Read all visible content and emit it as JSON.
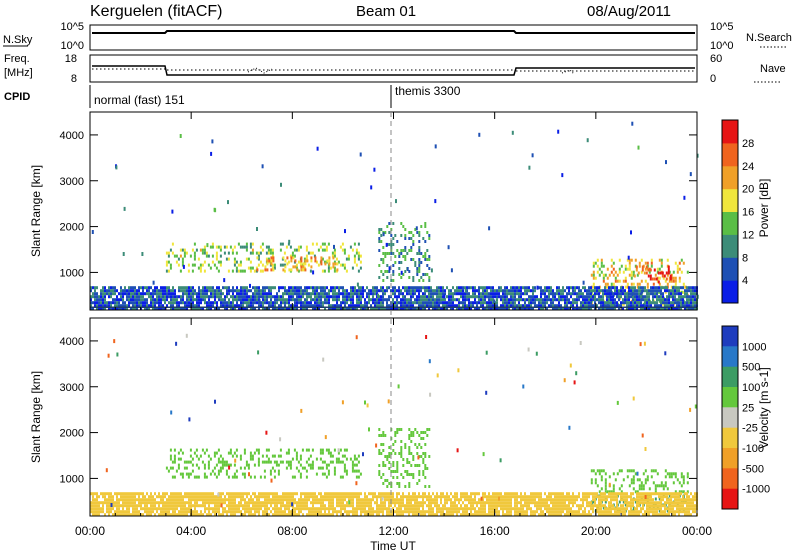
{
  "header": {
    "station": "Kerguelen (fitACF)",
    "beam": "Beam 01",
    "date": "08/Aug/2011"
  },
  "sky_panel": {
    "left_label": "N.Sky",
    "right_label": "N.Search",
    "left_ticks": [
      "10^5",
      "10^0"
    ],
    "right_ticks": [
      "10^5",
      "10^0"
    ]
  },
  "freq_panel": {
    "left_label_1": "Freq.",
    "left_label_2": "[MHz]",
    "right_label": "Nave",
    "left_ticks": [
      "18",
      "8"
    ],
    "right_ticks": [
      "60",
      "0"
    ]
  },
  "cpid": {
    "label": "CPID",
    "modes": [
      {
        "name": "normal (fast) 151",
        "start_hour": 0
      },
      {
        "name": "themis 3300",
        "start_hour": 12
      }
    ]
  },
  "chart_data": [
    {
      "type": "heatmap",
      "title": "",
      "xlabel": "",
      "ylabel": "Slant Range [km]",
      "xlim": [
        0,
        24
      ],
      "ylim": [
        180,
        4500
      ],
      "x_tick_labels": [
        "00:00",
        "04:00",
        "08:00",
        "12:00",
        "16:00",
        "20:00",
        "00:00"
      ],
      "y_tick_labels": [
        "1000",
        "2000",
        "3000",
        "4000"
      ],
      "colorbar": {
        "label": "Power [dB]",
        "tick_labels": [
          "4",
          "8",
          "12",
          "16",
          "20",
          "24",
          "28"
        ],
        "range": [
          0,
          30
        ],
        "colors": [
          "#0a1ee6",
          "#1e50b4",
          "#3c8c78",
          "#5abe46",
          "#f0e63c",
          "#f0a028",
          "#f0641e",
          "#e61414"
        ]
      },
      "regions": [
        {
          "t0": 3.0,
          "t1": 10.7,
          "r0": 1000,
          "r1": 1650,
          "value": 14
        },
        {
          "t0": 6.5,
          "t1": 9.8,
          "r0": 1050,
          "r1": 1350,
          "value": 21
        },
        {
          "t0": 11.4,
          "t1": 13.4,
          "r0": 800,
          "r1": 2100,
          "value": 10
        },
        {
          "t0": 19.8,
          "t1": 23.6,
          "r0": 700,
          "r1": 1300,
          "value": 18
        },
        {
          "t0": 21.5,
          "t1": 23.0,
          "r0": 780,
          "r1": 1150,
          "value": 27
        },
        {
          "t0": 19.8,
          "t1": 23.6,
          "r0": 280,
          "r1": 600,
          "value": 15
        },
        {
          "t0": 0.0,
          "t1": 24.0,
          "r0": 200,
          "r1": 700,
          "value": 6
        }
      ]
    },
    {
      "type": "heatmap",
      "title": "",
      "xlabel": "Time UT",
      "ylabel": "Slant Range [km]",
      "xlim": [
        0,
        24
      ],
      "ylim": [
        180,
        4500
      ],
      "x_tick_labels": [
        "00:00",
        "04:00",
        "08:00",
        "12:00",
        "16:00",
        "20:00",
        "00:00"
      ],
      "y_tick_labels": [
        "1000",
        "2000",
        "3000",
        "4000"
      ],
      "colorbar": {
        "label": "Velocity [m s-1]",
        "tick_labels": [
          "1000",
          "500",
          "100",
          "25",
          "-25",
          "-100",
          "-500",
          "-1000"
        ],
        "colors": [
          "#1e3cbe",
          "#2878c8",
          "#3c9c64",
          "#64c83c",
          "#c8c8c0",
          "#f0c83c",
          "#f0a028",
          "#f0641e",
          "#e61414"
        ]
      },
      "regions": [
        {
          "t0": 3.0,
          "t1": 10.7,
          "r0": 1000,
          "r1": 1650,
          "value": "25"
        },
        {
          "t0": 11.4,
          "t1": 13.4,
          "r0": 800,
          "r1": 2100,
          "value": "25"
        },
        {
          "t0": 19.8,
          "t1": 23.6,
          "r0": 700,
          "r1": 1200,
          "value": "25"
        },
        {
          "t0": 19.8,
          "t1": 23.6,
          "r0": 300,
          "r1": 650,
          "value": "100"
        },
        {
          "t0": 0.0,
          "t1": 24.0,
          "r0": 200,
          "r1": 700,
          "value": "-100"
        }
      ]
    }
  ]
}
